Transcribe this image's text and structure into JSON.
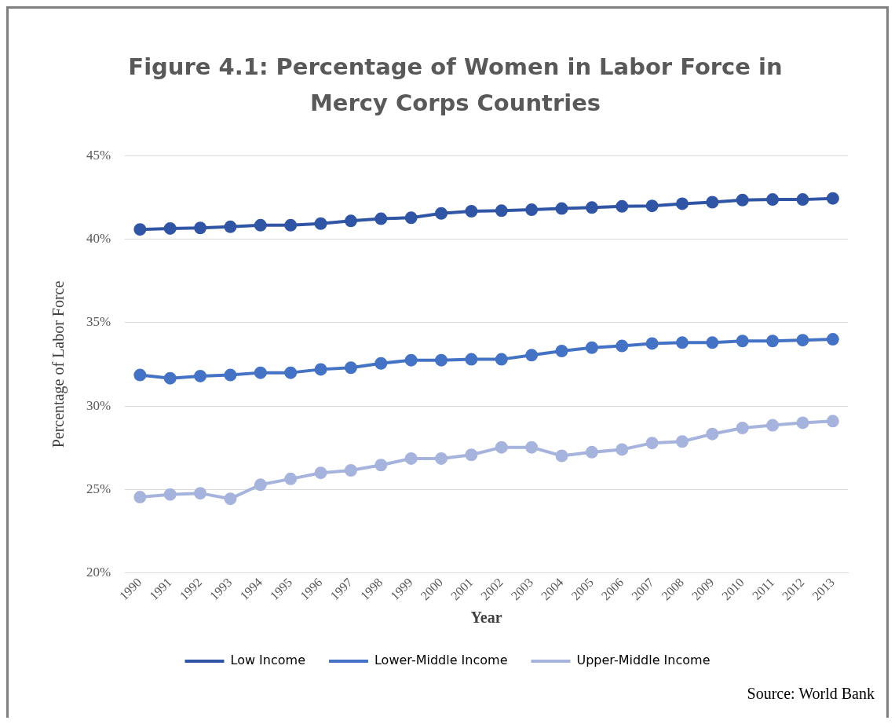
{
  "chart_data": {
    "type": "line",
    "title": "Figure 4.1: Percentage of Women in Labor Force in Mercy Corps Countries",
    "xlabel": "Year",
    "ylabel": "Percentage of Labor Force",
    "categories": [
      "1990",
      "1991",
      "1992",
      "1993",
      "1994",
      "1995",
      "1996",
      "1997",
      "1998",
      "1999",
      "2000",
      "2001",
      "2002",
      "2003",
      "2004",
      "2005",
      "2006",
      "2007",
      "2008",
      "2009",
      "2010",
      "2011",
      "2012",
      "2013"
    ],
    "series": [
      {
        "name": "Low Income",
        "color": "#2f55a4",
        "values": [
          40.58,
          40.64,
          40.67,
          40.74,
          40.83,
          40.83,
          40.93,
          41.09,
          41.22,
          41.28,
          41.54,
          41.67,
          41.7,
          41.76,
          41.83,
          41.89,
          41.96,
          41.99,
          42.12,
          42.21,
          42.34,
          42.37,
          42.37,
          42.44
        ]
      },
      {
        "name": "Lower-Middle Income",
        "color": "#4472c4",
        "values": [
          31.86,
          31.67,
          31.8,
          31.86,
          32.0,
          32.0,
          32.2,
          32.3,
          32.56,
          32.75,
          32.75,
          32.8,
          32.8,
          33.05,
          33.3,
          33.5,
          33.6,
          33.75,
          33.8,
          33.8,
          33.9,
          33.9,
          33.95,
          34.0
        ]
      },
      {
        "name": "Upper-Middle Income",
        "color": "#a5b3dd",
        "values": [
          24.55,
          24.71,
          24.78,
          24.45,
          25.29,
          25.64,
          26.0,
          26.15,
          26.47,
          26.86,
          26.86,
          27.08,
          27.53,
          27.53,
          27.02,
          27.24,
          27.4,
          27.79,
          27.88,
          28.33,
          28.69,
          28.85,
          29.0,
          29.1
        ]
      }
    ],
    "ylim": [
      20,
      45
    ],
    "yticks": [
      {
        "value": 20,
        "label": "20%"
      },
      {
        "value": 25,
        "label": "25%"
      },
      {
        "value": 30,
        "label": "30%"
      },
      {
        "value": 35,
        "label": "35%"
      },
      {
        "value": 40,
        "label": "40%"
      },
      {
        "value": 45,
        "label": "45%"
      }
    ],
    "grid": "y",
    "legend": "bottom",
    "marker": "circle",
    "line_style": "solid",
    "annotations": [
      "Source: World Bank"
    ]
  }
}
